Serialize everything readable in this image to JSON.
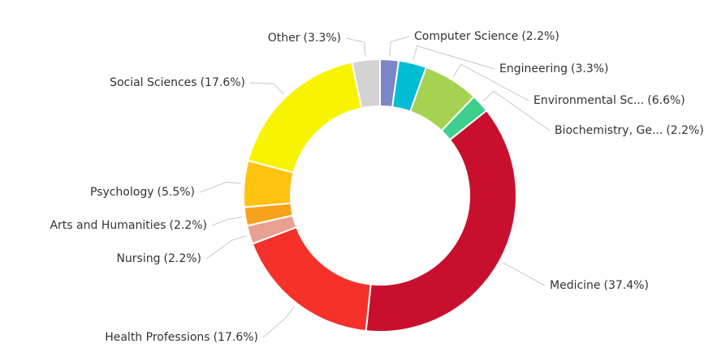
{
  "chart_data": {
    "type": "donut",
    "categories": [
      "Computer Science",
      "Engineering",
      "Environmental Sc...",
      "Biochemistry, Ge...",
      "Medicine",
      "Health Professions",
      "Nursing",
      "Arts and Humanities",
      "Psychology",
      "Social Sciences",
      "Other"
    ],
    "values": [
      2.2,
      3.3,
      6.6,
      2.2,
      37.4,
      17.6,
      2.2,
      2.2,
      5.5,
      17.6,
      3.3
    ],
    "value_labels": [
      "(2.2%)",
      "(3.3%)",
      "(6.6%)",
      "(2.2%)",
      "(37.4%)",
      "(17.6%)",
      "(2.2%)",
      "(2.2%)",
      "(5.5%)",
      "(17.6%)",
      "(3.3%)"
    ],
    "colors": [
      "#7b86c8",
      "#00bcd4",
      "#a5d251",
      "#3ecf8e",
      "#c8102e",
      "#f5312a",
      "#e8a092",
      "#f7a21b",
      "#ffc20e",
      "#f8f400",
      "#d3d3d3"
    ]
  }
}
